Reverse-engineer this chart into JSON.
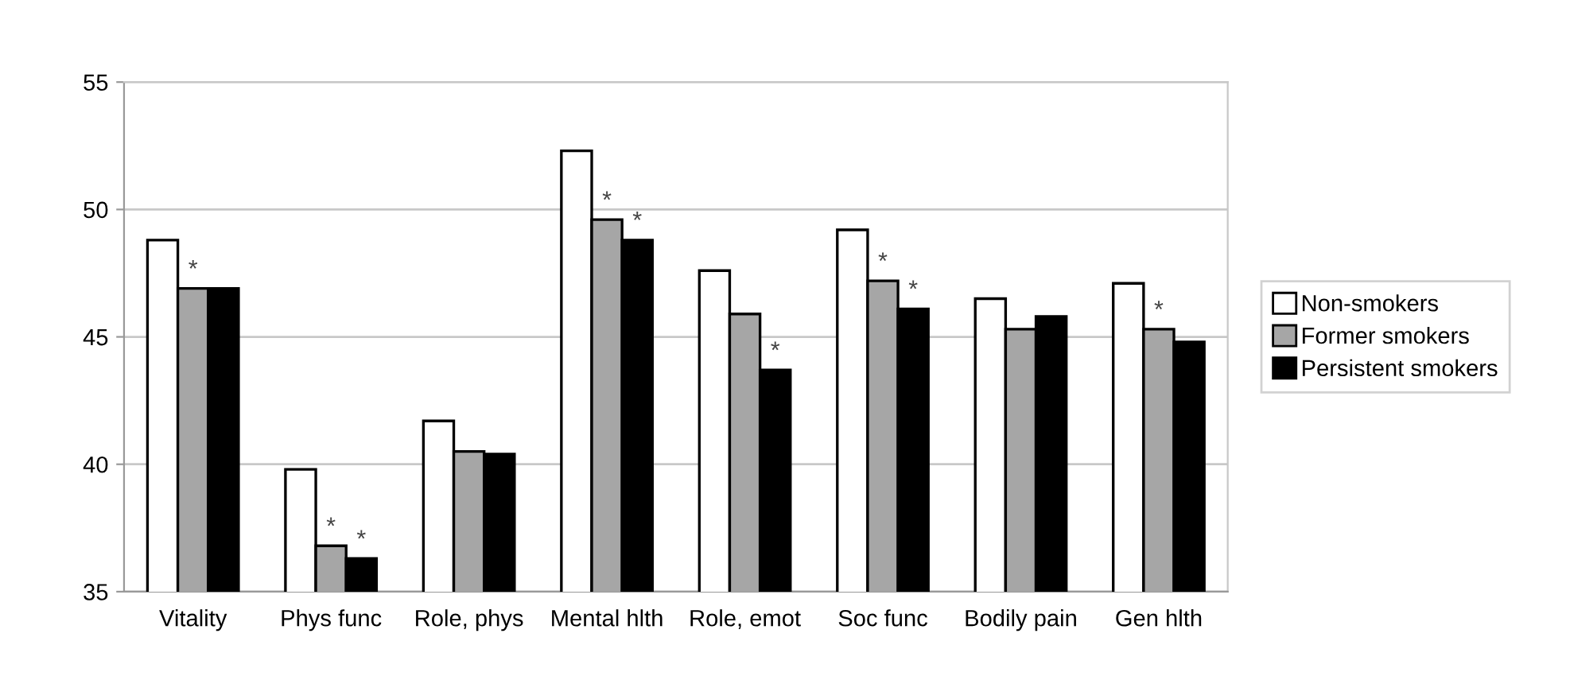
{
  "chart_data": {
    "type": "bar",
    "categories": [
      "Vitality",
      "Phys func",
      "Role, phys",
      "Mental hlth",
      "Role, emot",
      "Soc func",
      "Bodily pain",
      "Gen hlth"
    ],
    "series": [
      {
        "name": "Non-smokers",
        "color": "#ffffff",
        "values": [
          48.8,
          39.8,
          41.7,
          52.3,
          47.6,
          49.2,
          46.5,
          47.1
        ]
      },
      {
        "name": "Former smokers",
        "color": "#a6a6a6",
        "values": [
          46.9,
          36.8,
          40.5,
          49.6,
          45.9,
          47.2,
          45.3,
          45.3
        ],
        "value_labels": [
          "*",
          "*",
          null,
          "*",
          null,
          "*",
          null,
          "*"
        ]
      },
      {
        "name": "Persistent smokers",
        "color": "#000000",
        "values": [
          46.9,
          36.3,
          40.4,
          48.8,
          43.7,
          46.1,
          45.8,
          44.8
        ],
        "value_labels": [
          null,
          "*",
          null,
          "*",
          "*",
          "*",
          null,
          null
        ]
      }
    ],
    "ylim": [
      35,
      55
    ],
    "yticks": [
      35,
      40,
      45,
      50,
      55
    ],
    "grid": "y",
    "legend": "right"
  }
}
